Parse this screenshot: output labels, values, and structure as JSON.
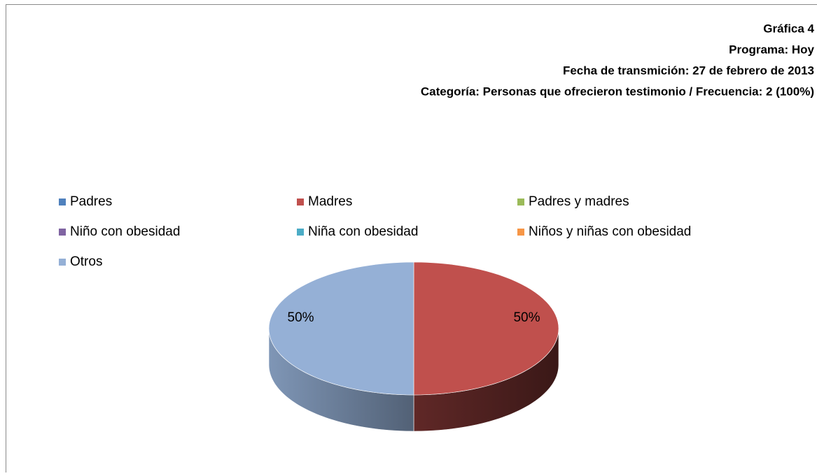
{
  "chart_data": {
    "type": "pie3d",
    "title": "Gráfica 4",
    "subtitles": [
      "Programa: Hoy",
      "Fecha de transmición: 27 de febrero de 2013",
      "Categoría: Personas que ofrecieron testimonio / Frecuencia: 2 (100%)"
    ],
    "categories": [
      "Padres",
      "Madres",
      "Padres y madres",
      "Niño con obesidad",
      "Niña con obesidad",
      "Niños y niñas con obesidad",
      "Otros"
    ],
    "values": [
      0,
      50,
      0,
      0,
      0,
      0,
      50
    ],
    "value_labels": [
      null,
      "50%",
      null,
      null,
      null,
      null,
      "50%"
    ],
    "colors": [
      "#4f81bd",
      "#c0504d",
      "#9bbb59",
      "#8064a2",
      "#4bacc6",
      "#f79646",
      "#95b0d6"
    ],
    "legend": "top"
  }
}
